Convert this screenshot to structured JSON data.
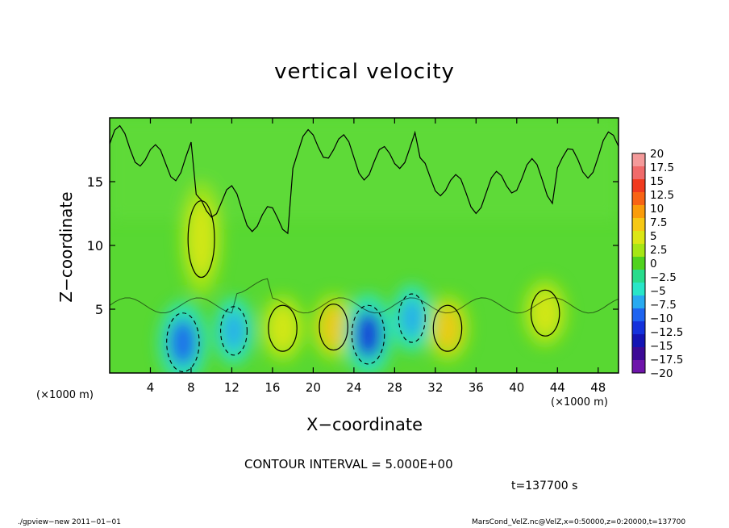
{
  "chart_data": {
    "type": "heatmap",
    "title": "vertical velocity",
    "xlabel": "X−coordinate",
    "ylabel": "Z−coordinate",
    "x_unit_label": "(×1000 m)",
    "xlim": [
      0,
      50
    ],
    "ylim": [
      0,
      20
    ],
    "x_ticks": [
      4,
      8,
      12,
      16,
      20,
      24,
      28,
      32,
      36,
      40,
      44,
      48
    ],
    "y_ticks": [
      5,
      10,
      15
    ],
    "contour_interval": 5.0,
    "colorbar": {
      "levels": [
        "20",
        "17.5",
        "15",
        "12.5",
        "10",
        "7.5",
        "5",
        "2.5",
        "0",
        "−2.5",
        "−5",
        "−7.5",
        "−10",
        "−12.5",
        "−15",
        "−17.5",
        "−20"
      ],
      "colors": [
        "#f49a9a",
        "#f06a6a",
        "#f03a1e",
        "#f86414",
        "#fa9c0a",
        "#f6c814",
        "#dce614",
        "#a6e614",
        "#50d21e",
        "#28dc8c",
        "#28e6c8",
        "#28aaf0",
        "#1e64f0",
        "#1432dc",
        "#1414b4",
        "#3c0a96",
        "#6e14aa"
      ]
    },
    "updraft_cells": [
      {
        "x": 9.0,
        "z": 10.5,
        "max": 5
      },
      {
        "x": 17.0,
        "z": 3.5,
        "max": 5
      },
      {
        "x": 22.0,
        "z": 3.6,
        "max": 7.5
      },
      {
        "x": 33.2,
        "z": 3.5,
        "max": 7.5
      },
      {
        "x": 42.8,
        "z": 4.7,
        "max": 5
      }
    ],
    "downdraft_cells": [
      {
        "x": 7.2,
        "z": 2.4,
        "min": -10
      },
      {
        "x": 12.2,
        "z": 3.3,
        "min": -7.5
      },
      {
        "x": 25.4,
        "z": 3.0,
        "min": -12.5
      },
      {
        "x": 29.7,
        "z": 4.3,
        "min": -7.5
      }
    ]
  },
  "annotations": {
    "contour_interval_text": "CONTOUR INTERVAL = 5.000E+00",
    "time_text": "t=137700 s",
    "footer_left": "./gpview−new   2011−01−01",
    "footer_right": "MarsCond_VelZ.nc@VelZ,x=0:50000,z=0:20000,t=137700"
  }
}
